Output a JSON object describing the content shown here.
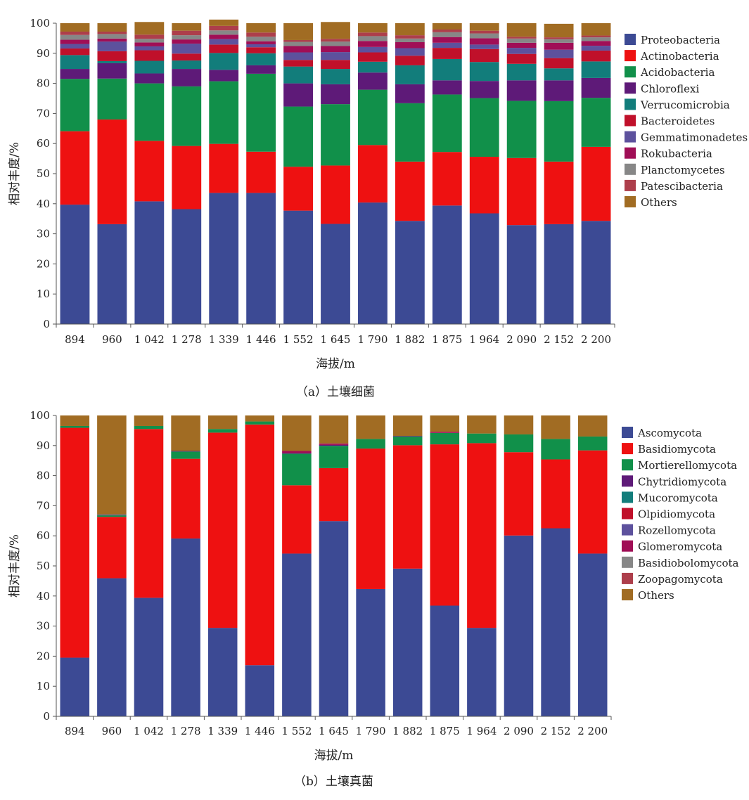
{
  "chart_data": [
    {
      "type": "bar",
      "stacked": true,
      "caption": "（a）土壤细菌",
      "xlabel": "海拔/m",
      "ylabel": "相对丰度/%",
      "ylim": [
        0,
        100
      ],
      "yticks": [
        "0",
        "10",
        "20",
        "30",
        "40",
        "50",
        "60",
        "70",
        "80",
        "90",
        "100"
      ],
      "categories": [
        "894",
        "960",
        "1 042",
        "1 278",
        "1 339",
        "1 446",
        "1 552",
        "1 645",
        "1 790",
        "1 882",
        "1 875",
        "1 964",
        "2 090",
        "2 152",
        "2 200"
      ],
      "legend_position": "right",
      "grid": false,
      "series": [
        {
          "name": "Proteobacteria",
          "color": "#3C4A94",
          "values": [
            39.7,
            33.2,
            40.8,
            38.2,
            43.6,
            43.6,
            37.7,
            33.3,
            40.4,
            34.3,
            39.4,
            36.8,
            32.9,
            33.2,
            34.3
          ]
        },
        {
          "name": "Actinobacteria",
          "color": "#EE1111",
          "values": [
            24.4,
            34.8,
            20.1,
            21.0,
            16.3,
            13.7,
            14.6,
            19.4,
            19.1,
            19.7,
            17.8,
            18.8,
            22.3,
            20.8,
            24.6
          ]
        },
        {
          "name": "Acidobacteria",
          "color": "#11904A",
          "values": [
            17.4,
            13.6,
            19.1,
            19.8,
            20.8,
            25.9,
            20.0,
            20.4,
            18.4,
            19.4,
            19.1,
            19.5,
            19.0,
            20.1,
            16.3
          ]
        },
        {
          "name": "Chloroflexi",
          "color": "#5E1A78",
          "values": [
            3.3,
            5.1,
            3.3,
            5.8,
            3.8,
            2.8,
            7.7,
            6.6,
            5.7,
            6.3,
            4.7,
            5.7,
            6.8,
            6.9,
            6.6
          ]
        },
        {
          "name": "Verrucomicrobia",
          "color": "#127D7B",
          "values": [
            4.6,
            0.7,
            4.2,
            2.8,
            5.6,
            4.0,
            5.6,
            5.1,
            3.6,
            6.3,
            7.1,
            6.3,
            5.5,
            4.0,
            5.5
          ]
        },
        {
          "name": "Bacteroidetes",
          "color": "#C0102A",
          "values": [
            2.2,
            3.3,
            3.5,
            2.3,
            2.8,
            2.0,
            2.2,
            3.0,
            3.1,
            3.2,
            3.7,
            4.3,
            3.3,
            3.4,
            3.6
          ]
        },
        {
          "name": "Gemmatimonadetes",
          "color": "#5D519D",
          "values": [
            1.5,
            3.2,
            1.3,
            3.3,
            1.8,
            1.0,
            2.5,
            2.6,
            1.8,
            2.5,
            1.7,
            1.5,
            2.0,
            2.8,
            1.6
          ]
        },
        {
          "name": "Rokubacteria",
          "color": "#A00E56",
          "values": [
            1.4,
            1.0,
            1.3,
            1.4,
            1.5,
            1.0,
            2.1,
            2.0,
            2.0,
            2.0,
            1.9,
            2.1,
            1.7,
            2.3,
            1.6
          ]
        },
        {
          "name": "Planctomycetes",
          "color": "#878787",
          "values": [
            1.6,
            1.5,
            1.2,
            1.4,
            1.4,
            1.5,
            1.4,
            1.5,
            1.6,
            1.2,
            1.6,
            1.6,
            1.4,
            1.2,
            1.2
          ]
        },
        {
          "name": "Patescibacteria",
          "color": "#AD3E4B",
          "values": [
            1.1,
            0.8,
            1.4,
            1.5,
            1.5,
            1.4,
            0.6,
            0.9,
            1.2,
            1.1,
            0.9,
            0.9,
            0.6,
            0.6,
            0.6
          ]
        },
        {
          "name": "Others",
          "color": "#A16C23",
          "values": [
            2.8,
            2.8,
            4.2,
            2.5,
            2.1,
            3.1,
            5.6,
            5.6,
            3.1,
            4.0,
            2.1,
            2.5,
            4.5,
            4.5,
            4.1
          ]
        }
      ]
    },
    {
      "type": "bar",
      "stacked": true,
      "caption": "（b）土壤真菌",
      "xlabel": "海拔/m",
      "ylabel": "相对丰度/%",
      "ylim": [
        0,
        100
      ],
      "yticks": [
        "0",
        "10",
        "20",
        "30",
        "40",
        "50",
        "60",
        "70",
        "80",
        "90",
        "100"
      ],
      "categories": [
        "894",
        "960",
        "1 042",
        "1 278",
        "1 339",
        "1 446",
        "1 552",
        "1 645",
        "1 790",
        "1 882",
        "1 875",
        "1 964",
        "2 090",
        "2 152",
        "2 200"
      ],
      "legend_position": "right",
      "grid": false,
      "series": [
        {
          "name": "Ascomycota",
          "color": "#3C4A94",
          "values": [
            19.5,
            45.9,
            39.4,
            59.1,
            29.4,
            17.0,
            54.1,
            64.9,
            42.3,
            49.1,
            36.8,
            29.4,
            60.1,
            62.5,
            54.1
          ]
        },
        {
          "name": "Basidiomycota",
          "color": "#EE1111",
          "values": [
            76.4,
            20.4,
            56.1,
            26.5,
            64.9,
            80.0,
            22.7,
            17.6,
            46.7,
            41.0,
            53.6,
            61.4,
            27.7,
            22.9,
            34.3
          ]
        },
        {
          "name": "Mortierellomycota",
          "color": "#11904A",
          "values": [
            0.6,
            0.5,
            1.0,
            2.4,
            1.2,
            1.0,
            10.5,
            7.4,
            3.2,
            2.9,
            3.8,
            3.2,
            5.9,
            6.8,
            4.6
          ]
        },
        {
          "name": "Chytridiomycota",
          "color": "#5E1A78",
          "values": [
            0.0,
            0.2,
            0.0,
            0.2,
            0.0,
            0.0,
            0.2,
            0.3,
            0.0,
            0.2,
            0.0,
            0.0,
            0.0,
            0.0,
            0.0
          ]
        },
        {
          "name": "Mucoromycota",
          "color": "#127D7B",
          "values": [
            0.0,
            0.1,
            0.0,
            0.0,
            0.0,
            0.0,
            0.0,
            0.0,
            0.0,
            0.0,
            0.0,
            0.0,
            0.0,
            0.0,
            0.0
          ]
        },
        {
          "name": "Olpidiomycota",
          "color": "#C0102A",
          "values": [
            0.0,
            0.0,
            0.0,
            0.0,
            0.0,
            0.0,
            0.0,
            0.0,
            0.0,
            0.0,
            0.0,
            0.0,
            0.0,
            0.0,
            0.0
          ]
        },
        {
          "name": "Rozellomycota",
          "color": "#5D519D",
          "values": [
            0.0,
            0.0,
            0.0,
            0.0,
            0.0,
            0.0,
            0.0,
            0.0,
            0.0,
            0.0,
            0.0,
            0.0,
            0.0,
            0.0,
            0.0
          ]
        },
        {
          "name": "Glomeromycota",
          "color": "#A00E56",
          "values": [
            0.0,
            0.0,
            0.0,
            0.0,
            0.0,
            0.0,
            0.7,
            0.5,
            0.0,
            0.0,
            0.4,
            0.0,
            0.0,
            0.0,
            0.0
          ]
        },
        {
          "name": "Basidiobolomycota",
          "color": "#878787",
          "values": [
            0.0,
            0.0,
            0.0,
            0.0,
            0.0,
            0.0,
            0.0,
            0.0,
            0.0,
            0.0,
            0.0,
            0.0,
            0.0,
            0.0,
            0.0
          ]
        },
        {
          "name": "Zoopagomycota",
          "color": "#AD3E4B",
          "values": [
            0.0,
            0.0,
            0.0,
            0.0,
            0.0,
            0.0,
            0.0,
            0.0,
            0.0,
            0.0,
            0.0,
            0.0,
            0.0,
            0.0,
            0.0
          ]
        },
        {
          "name": "Others",
          "color": "#A16C23",
          "values": [
            3.5,
            32.9,
            3.5,
            11.8,
            4.5,
            2.0,
            11.8,
            9.3,
            7.8,
            6.8,
            5.4,
            6.0,
            6.3,
            7.8,
            7.0
          ]
        }
      ]
    }
  ]
}
